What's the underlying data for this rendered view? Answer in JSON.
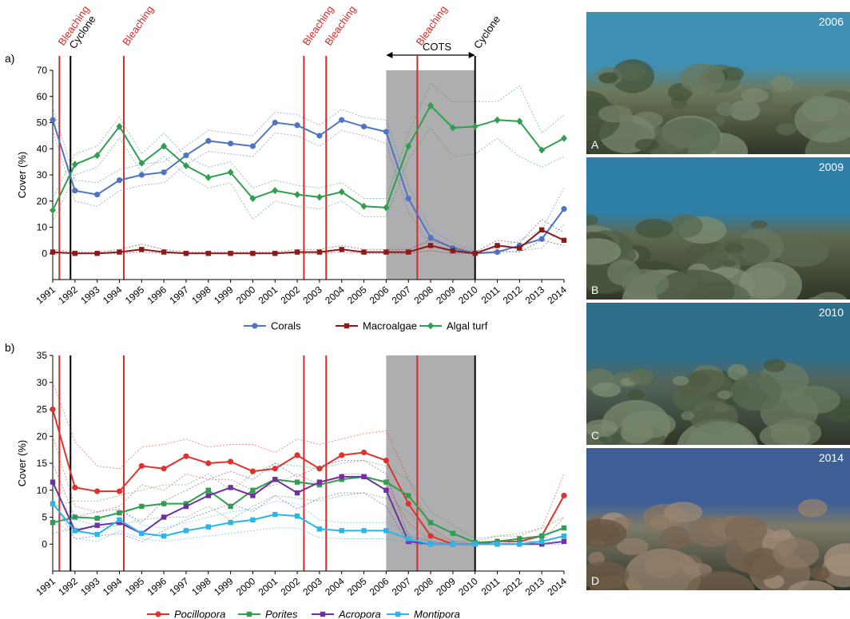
{
  "chart_data": [
    {
      "type": "line",
      "panel_label": "a)",
      "ylabel": "Cover (%)",
      "ylim": [
        -10,
        70
      ],
      "yticks": [
        0,
        10,
        20,
        30,
        40,
        50,
        60,
        70
      ],
      "x": [
        1991,
        1992,
        1993,
        1994,
        1995,
        1996,
        1997,
        1998,
        1999,
        2000,
        2001,
        2002,
        2003,
        2004,
        2005,
        2006,
        2007,
        2008,
        2009,
        2010,
        2011,
        2012,
        2013,
        2014
      ],
      "series": [
        {
          "name": "Corals",
          "color": "#4f74c4",
          "marker": "circle",
          "values": [
            51,
            24,
            22.5,
            28,
            30,
            31,
            37.5,
            43,
            42,
            41,
            50,
            49,
            45,
            51,
            48.5,
            46.5,
            21,
            6,
            2,
            0,
            0.5,
            3,
            5.5,
            17
          ],
          "upper": [
            56,
            28,
            27,
            32,
            34,
            35,
            41,
            47,
            46,
            45,
            54,
            53,
            49,
            55,
            52,
            51,
            26,
            9,
            4,
            1,
            2,
            5,
            9,
            25
          ],
          "lower": [
            47,
            20,
            18,
            24,
            26,
            27,
            34,
            39,
            38,
            37,
            46,
            45,
            41,
            47,
            45,
            42,
            16,
            3,
            0.5,
            0,
            0,
            1,
            2,
            11
          ]
        },
        {
          "name": "Macroalgae",
          "color": "#8b1a1a",
          "marker": "square",
          "values": [
            0.5,
            0,
            0,
            0.5,
            1.5,
            0.5,
            0,
            0,
            0,
            0,
            0,
            0.5,
            0.5,
            1.5,
            0.5,
            0.5,
            0.5,
            3,
            1,
            0,
            3,
            2,
            9,
            5
          ],
          "upper": [
            1.5,
            0.5,
            0.5,
            1.5,
            3.5,
            1.5,
            0.5,
            0.5,
            0.5,
            0.5,
            0.5,
            1.5,
            1.5,
            3,
            1.5,
            1.5,
            1.5,
            5,
            2.5,
            0.5,
            5,
            4,
            13,
            8
          ],
          "lower": [
            0,
            0,
            0,
            0,
            0.5,
            0,
            0,
            0,
            0,
            0,
            0,
            0,
            0,
            0.5,
            0,
            0,
            0,
            1,
            0,
            0,
            1,
            0.5,
            5,
            3
          ]
        },
        {
          "name": "Algal turf",
          "color": "#2f9e4e",
          "marker": "diamond",
          "values": [
            16.5,
            34,
            37.5,
            48.5,
            34.5,
            41,
            33.5,
            29,
            31,
            21,
            24,
            22.5,
            21.5,
            23.5,
            18,
            17.5,
            41,
            56.5,
            48,
            48.5,
            51,
            50.5,
            39.5,
            44
          ],
          "upper": [
            21,
            38,
            41,
            52,
            38,
            46,
            37,
            33,
            35,
            25,
            28,
            26,
            25,
            27,
            21,
            21,
            46,
            65,
            58,
            58,
            58,
            64,
            46,
            53
          ],
          "lower": [
            12,
            30,
            33,
            44,
            31,
            37,
            30,
            25,
            27,
            13,
            20,
            18,
            17,
            20,
            14,
            14,
            36,
            48,
            37,
            38,
            44,
            37,
            33,
            37
          ]
        }
      ]
    },
    {
      "type": "line",
      "panel_label": "b)",
      "ylabel": "Cover (%)",
      "ylim": [
        -5,
        35
      ],
      "yticks": [
        0,
        5,
        10,
        15,
        20,
        25,
        30,
        35
      ],
      "x": [
        1991,
        1992,
        1993,
        1994,
        1995,
        1996,
        1997,
        1998,
        1999,
        2000,
        2001,
        2002,
        2003,
        2004,
        2005,
        2006,
        2007,
        2008,
        2009,
        2010,
        2011,
        2012,
        2013,
        2014
      ],
      "series": [
        {
          "name": "Pocillopora",
          "color": "#e0322d",
          "marker": "circle",
          "values": [
            25,
            10.5,
            9.8,
            9.8,
            14.5,
            14,
            16.3,
            15,
            15.3,
            13.5,
            14,
            16.5,
            14,
            16.5,
            17,
            15.5,
            7.5,
            1.5,
            0,
            0,
            0.5,
            0.5,
            1.5,
            9
          ],
          "upper": [
            30,
            19,
            14.5,
            14,
            18,
            18.5,
            19.5,
            18,
            18.5,
            18.5,
            17,
            19.5,
            18.5,
            19.5,
            20.5,
            21,
            12,
            3,
            0.5,
            0.5,
            1.5,
            1.5,
            3,
            13
          ],
          "lower": [
            20,
            7,
            6,
            7,
            11,
            10,
            13,
            12,
            12,
            10,
            11,
            13,
            11,
            13,
            13,
            11,
            4,
            0.5,
            0,
            0,
            0,
            0,
            0.5,
            5
          ]
        },
        {
          "name": "Porites",
          "color": "#2f9e4e",
          "marker": "square",
          "values": [
            4,
            5,
            4.8,
            5.8,
            7,
            7.5,
            7.5,
            10,
            7,
            10,
            12,
            11.5,
            11,
            12,
            12.5,
            11.5,
            9,
            4,
            2,
            0.3,
            0.5,
            1,
            1.5,
            3
          ],
          "upper": [
            7,
            8,
            8,
            9,
            10,
            11,
            11,
            13,
            10,
            13,
            15,
            14.5,
            14,
            15,
            15.5,
            14.5,
            12,
            6,
            3.5,
            1,
            1.5,
            2,
            3,
            5
          ],
          "lower": [
            2,
            3,
            3,
            3.5,
            4.5,
            5,
            5,
            7,
            4.5,
            7,
            9,
            8.5,
            8,
            9,
            9.5,
            8.5,
            6,
            2,
            0.5,
            0,
            0,
            0.5,
            0.5,
            1.5
          ]
        },
        {
          "name": "Acropora",
          "color": "#7030a0",
          "marker": "square",
          "values": [
            11.5,
            2.5,
            3.5,
            4,
            2,
            5,
            7,
            9,
            10.5,
            9,
            12,
            9.5,
            11.5,
            12.5,
            12.5,
            10,
            0.5,
            0,
            0,
            0,
            0,
            0,
            0,
            0.5
          ],
          "upper": [
            15,
            5,
            6,
            6.5,
            4,
            8,
            10,
            12,
            13.5,
            12,
            15,
            12.5,
            14.5,
            15.5,
            15.5,
            13,
            1.5,
            0.5,
            0,
            0,
            0.5,
            0.5,
            0.5,
            1.5
          ],
          "lower": [
            8,
            1,
            1.5,
            2,
            0.5,
            2.5,
            4.5,
            6,
            7.5,
            6,
            9,
            6.5,
            8.5,
            9.5,
            9.5,
            7,
            0,
            0,
            0,
            0,
            0,
            0,
            0,
            0
          ]
        },
        {
          "name": "Montipora",
          "color": "#29b6e8",
          "marker": "square",
          "values": [
            7.5,
            2.5,
            1.8,
            4.5,
            2,
            1.5,
            2.5,
            3.2,
            4,
            4.5,
            5.5,
            5.2,
            2.8,
            2.5,
            2.5,
            2.5,
            1,
            0,
            0,
            0,
            0,
            0,
            0.5,
            1.5
          ],
          "upper": [
            10,
            4.5,
            3.5,
            6.5,
            3.5,
            3,
            4,
            5,
            6,
            6.5,
            8,
            7.5,
            4.5,
            4,
            4,
            4,
            2,
            0.5,
            0,
            0,
            0.5,
            0.5,
            1.5,
            3
          ],
          "lower": [
            5,
            1,
            0.5,
            2.5,
            1,
            0.5,
            1,
            1.5,
            2,
            2.5,
            3,
            3,
            1.2,
            1,
            1,
            1,
            0.3,
            0,
            0,
            0,
            0,
            0,
            0,
            0.5
          ]
        }
      ]
    }
  ],
  "events": [
    {
      "label": "Bleaching",
      "x": 1991.3,
      "color": "#d62b2b",
      "tier": 1
    },
    {
      "label": "Cyclone",
      "x": 1991.8,
      "color": "#000000",
      "tier": 2
    },
    {
      "label": "Bleaching",
      "x": 1994.2,
      "color": "#d62b2b",
      "tier": 1
    },
    {
      "label": "Bleaching",
      "x": 2002.3,
      "color": "#d62b2b",
      "tier": 1
    },
    {
      "label": "Bleaching",
      "x": 2003.3,
      "color": "#d62b2b",
      "tier": 1
    },
    {
      "label": "Bleaching",
      "x": 2007.4,
      "color": "#d62b2b",
      "tier": 1
    },
    {
      "label": "Cyclone",
      "x": 2010,
      "color": "#000000",
      "tier": 2
    }
  ],
  "shaded_period": {
    "label": "COTS",
    "from": 2006,
    "to": 2010,
    "color": "#aeaeb0"
  },
  "photos": [
    {
      "year": "2006",
      "letter": "A",
      "sky": "#3f8fb3",
      "reef": "#6e7a5c"
    },
    {
      "year": "2009",
      "letter": "B",
      "sky": "#2d7fa8",
      "reef": "#5f6a50"
    },
    {
      "year": "2010",
      "letter": "C",
      "sky": "#2f6f8c",
      "reef": "#54665c"
    },
    {
      "year": "2014",
      "letter": "D",
      "sky": "#3d5f96",
      "reef": "#7d7a6a"
    }
  ]
}
